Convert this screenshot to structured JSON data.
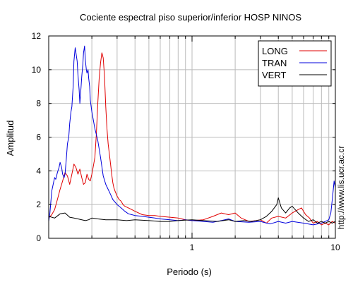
{
  "chart_data": {
    "type": "line",
    "title": "Cociente espectral piso superior/inferior  HOSP NINOS",
    "xlabel": "Periodo (s)",
    "ylabel": "Amplitud",
    "side_note": "http://www.lis.ucr.ac.cr",
    "xscale": "log",
    "xlim": [
      0.1,
      10
    ],
    "ylim": [
      0,
      12
    ],
    "xticks": [
      {
        "value": 1,
        "label": "1"
      },
      {
        "value": 10,
        "label": "10"
      }
    ],
    "yticks": [
      0,
      2,
      4,
      6,
      8,
      10,
      12
    ],
    "grid": true,
    "legend_position": "top-right",
    "series": [
      {
        "name": "LONG",
        "color": "#e00000",
        "x": [
          0.1,
          0.105,
          0.11,
          0.115,
          0.12,
          0.125,
          0.13,
          0.135,
          0.14,
          0.145,
          0.15,
          0.155,
          0.16,
          0.165,
          0.17,
          0.175,
          0.18,
          0.185,
          0.19,
          0.195,
          0.2,
          0.205,
          0.21,
          0.215,
          0.22,
          0.225,
          0.23,
          0.235,
          0.24,
          0.245,
          0.25,
          0.255,
          0.26,
          0.265,
          0.27,
          0.275,
          0.28,
          0.285,
          0.29,
          0.3,
          0.31,
          0.32,
          0.33,
          0.34,
          0.36,
          0.38,
          0.4,
          0.45,
          0.5,
          0.55,
          0.6,
          0.7,
          0.8,
          0.9,
          1.0,
          1.2,
          1.4,
          1.6,
          1.8,
          2.0,
          2.2,
          2.5,
          2.8,
          3.0,
          3.3,
          3.6,
          4.0,
          4.5,
          5.0,
          5.5,
          5.8,
          6.2,
          6.6,
          7.0,
          7.5,
          8.0,
          8.5,
          9.0,
          9.5,
          10.0
        ],
        "y": [
          1.2,
          1.4,
          1.7,
          2.3,
          2.9,
          3.4,
          3.9,
          3.7,
          3.2,
          3.8,
          4.4,
          4.2,
          3.8,
          4.1,
          3.6,
          3.2,
          3.3,
          3.8,
          3.5,
          3.4,
          3.8,
          4.3,
          4.8,
          6.2,
          8.0,
          9.5,
          10.4,
          11.0,
          10.7,
          9.6,
          7.8,
          6.5,
          5.6,
          5.0,
          4.4,
          3.8,
          3.3,
          3.0,
          2.8,
          2.5,
          2.3,
          2.2,
          2.0,
          1.9,
          1.8,
          1.7,
          1.6,
          1.4,
          1.35,
          1.35,
          1.3,
          1.25,
          1.2,
          1.1,
          1.05,
          1.1,
          1.3,
          1.5,
          1.4,
          1.5,
          1.2,
          1.0,
          1.05,
          1.1,
          0.9,
          1.2,
          1.3,
          1.2,
          1.5,
          1.7,
          1.8,
          1.4,
          1.2,
          0.9,
          1.0,
          0.8,
          0.9,
          0.8,
          1.0,
          0.9
        ]
      },
      {
        "name": "TRAN",
        "color": "#0000dd",
        "x": [
          0.1,
          0.102,
          0.105,
          0.108,
          0.11,
          0.112,
          0.115,
          0.118,
          0.12,
          0.123,
          0.125,
          0.128,
          0.13,
          0.133,
          0.135,
          0.138,
          0.14,
          0.143,
          0.145,
          0.148,
          0.15,
          0.153,
          0.155,
          0.158,
          0.16,
          0.163,
          0.165,
          0.168,
          0.17,
          0.173,
          0.175,
          0.178,
          0.18,
          0.183,
          0.185,
          0.188,
          0.19,
          0.193,
          0.195,
          0.2,
          0.21,
          0.22,
          0.23,
          0.24,
          0.25,
          0.26,
          0.27,
          0.28,
          0.3,
          0.32,
          0.34,
          0.36,
          0.38,
          0.4,
          0.45,
          0.5,
          0.55,
          0.6,
          0.7,
          0.8,
          0.9,
          1.0,
          1.2,
          1.4,
          1.6,
          1.8,
          2.0,
          2.5,
          3.0,
          3.5,
          4.0,
          4.5,
          5.0,
          6.0,
          7.0,
          8.0,
          8.5,
          9.0,
          9.3,
          9.6,
          9.8,
          10.0
        ],
        "y": [
          1.0,
          1.5,
          2.8,
          3.3,
          3.6,
          3.5,
          3.9,
          4.2,
          4.5,
          4.2,
          3.8,
          3.6,
          3.8,
          4.8,
          5.6,
          6.0,
          6.8,
          7.5,
          7.8,
          9.0,
          10.5,
          11.3,
          11.0,
          10.5,
          9.7,
          8.8,
          8.0,
          8.9,
          9.6,
          10.3,
          11.0,
          11.4,
          10.6,
          10.0,
          9.8,
          10.0,
          9.5,
          9.0,
          8.2,
          7.5,
          6.5,
          5.8,
          4.8,
          3.7,
          3.2,
          2.9,
          2.6,
          2.3,
          2.0,
          1.8,
          1.6,
          1.45,
          1.4,
          1.35,
          1.3,
          1.25,
          1.2,
          1.15,
          1.1,
          1.05,
          1.1,
          1.05,
          1.0,
          0.95,
          1.05,
          1.15,
          1.0,
          0.95,
          1.0,
          0.85,
          1.0,
          0.9,
          1.0,
          0.9,
          0.8,
          0.9,
          1.0,
          1.1,
          1.5,
          2.6,
          3.4,
          3.0
        ]
      },
      {
        "name": "VERT",
        "color": "#000000",
        "x": [
          0.1,
          0.11,
          0.12,
          0.13,
          0.14,
          0.15,
          0.16,
          0.17,
          0.18,
          0.19,
          0.2,
          0.22,
          0.25,
          0.3,
          0.35,
          0.4,
          0.5,
          0.6,
          0.7,
          0.8,
          1.0,
          1.2,
          1.5,
          1.8,
          2.0,
          2.3,
          2.6,
          3.0,
          3.3,
          3.6,
          3.9,
          4.0,
          4.2,
          4.5,
          4.8,
          5.0,
          5.5,
          6.0,
          6.5,
          7.0,
          7.5,
          8.0,
          8.5,
          9.0,
          9.5,
          10.0
        ],
        "y": [
          1.3,
          1.2,
          1.45,
          1.5,
          1.25,
          1.2,
          1.15,
          1.1,
          1.05,
          1.1,
          1.2,
          1.15,
          1.1,
          1.1,
          1.05,
          1.1,
          1.05,
          1.0,
          1.0,
          1.05,
          1.1,
          1.05,
          1.0,
          1.1,
          1.0,
          1.05,
          1.0,
          1.1,
          1.3,
          1.6,
          2.0,
          2.4,
          1.8,
          1.5,
          1.8,
          1.9,
          1.5,
          1.2,
          1.0,
          1.1,
          0.9,
          1.0,
          0.9,
          1.0,
          0.9,
          1.0
        ]
      }
    ]
  }
}
